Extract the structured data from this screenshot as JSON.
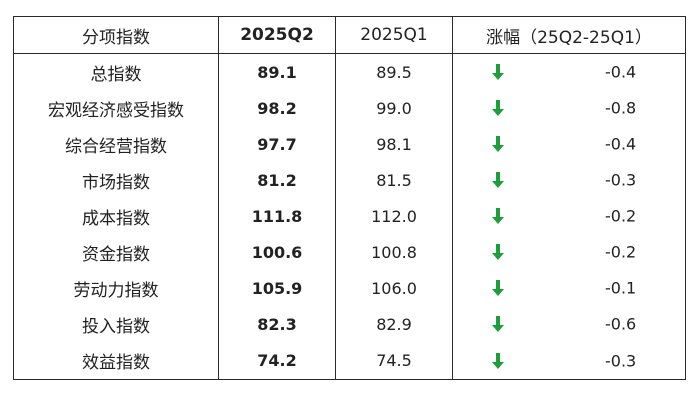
{
  "table": {
    "headers": {
      "category": "分项指数",
      "current": "2025Q2",
      "previous": "2025Q1",
      "change": "涨幅（25Q2-25Q1）"
    },
    "rows": [
      {
        "name": "总指数",
        "current": "89.1",
        "previous": "89.5",
        "direction": "down",
        "change": "-0.4"
      },
      {
        "name": "宏观经济感受指数",
        "current": "98.2",
        "previous": "99.0",
        "direction": "down",
        "change": "-0.8"
      },
      {
        "name": "综合经营指数",
        "current": "97.7",
        "previous": "98.1",
        "direction": "down",
        "change": "-0.4"
      },
      {
        "name": "市场指数",
        "current": "81.2",
        "previous": "81.5",
        "direction": "down",
        "change": "-0.3"
      },
      {
        "name": "成本指数",
        "current": "111.8",
        "previous": "112.0",
        "direction": "down",
        "change": "-0.2"
      },
      {
        "name": "资金指数",
        "current": "100.6",
        "previous": "100.8",
        "direction": "down",
        "change": "-0.2"
      },
      {
        "name": "劳动力指数",
        "current": "105.9",
        "previous": "106.0",
        "direction": "down",
        "change": "-0.1"
      },
      {
        "name": "投入指数",
        "current": "82.3",
        "previous": "82.9",
        "direction": "down",
        "change": "-0.6"
      },
      {
        "name": "效益指数",
        "current": "74.2",
        "previous": "74.5",
        "direction": "down",
        "change": "-0.3"
      }
    ]
  },
  "colors": {
    "down_arrow": "#1e9e3a",
    "border": "#2a2a2a",
    "text": "#222222"
  },
  "icons": {
    "down": "arrow-down-icon"
  }
}
